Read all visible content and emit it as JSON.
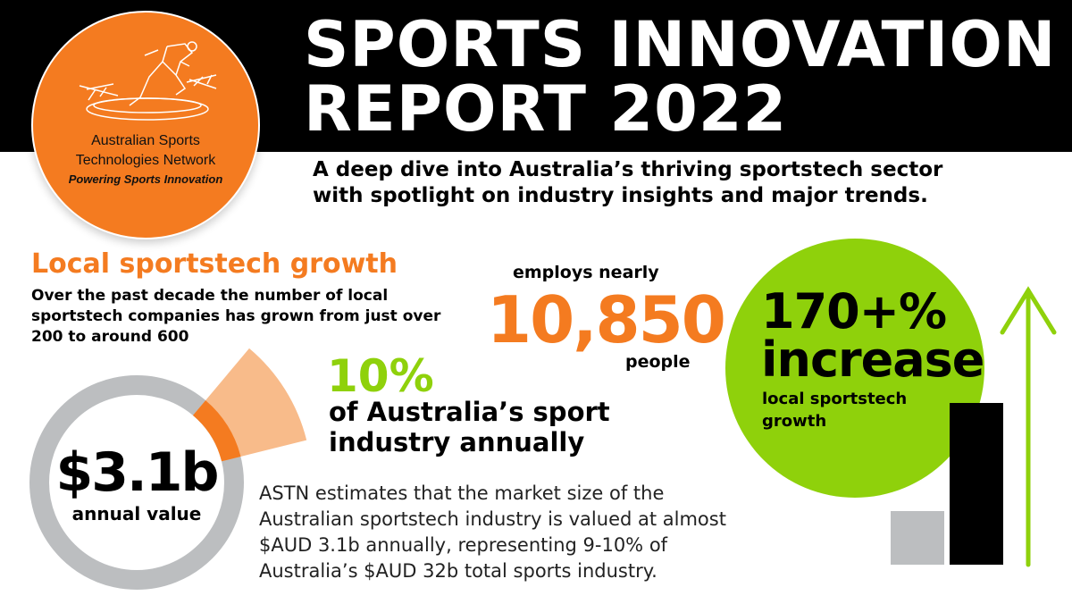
{
  "header": {
    "title_line1": "SPORTS INNOVATION",
    "title_line2": "REPORT 2022",
    "subtitle_line1": "A deep dive into Australia’s thriving sportstech sector",
    "subtitle_line2": "with spotlight on industry insights and major trends."
  },
  "logo": {
    "name_line1": "Australian Sports",
    "name_line2": "Technologies Network",
    "tagline": "Powering Sports Innovation"
  },
  "local_growth": {
    "heading": "Local sportstech growth",
    "body": "Over the past decade the number of local sportstech companies has grown from just over 200 to around 600"
  },
  "employment": {
    "label": "employs nearly",
    "value": "10,850",
    "unit": "people"
  },
  "share": {
    "value": "10%",
    "label_line1": "of Australia’s sport",
    "label_line2": "industry annually",
    "fraction": 0.1
  },
  "market": {
    "value": "$3.1b",
    "label": "annual value",
    "paragraph": "ASTN estimates that the market size of the Australian sportstech industry is valued at almost $AUD 3.1b annually, representing 9-10% of Australia’s $AUD 32b total sports industry."
  },
  "growth": {
    "value": "170+%",
    "word": "increase",
    "label_line1": "local sportstech",
    "label_line2": "growth"
  },
  "colors": {
    "orange": "#f47b20",
    "light_orange": "#f8bb8a",
    "green": "#8fd10b",
    "gray": "#bcbec0",
    "black": "#000000"
  }
}
